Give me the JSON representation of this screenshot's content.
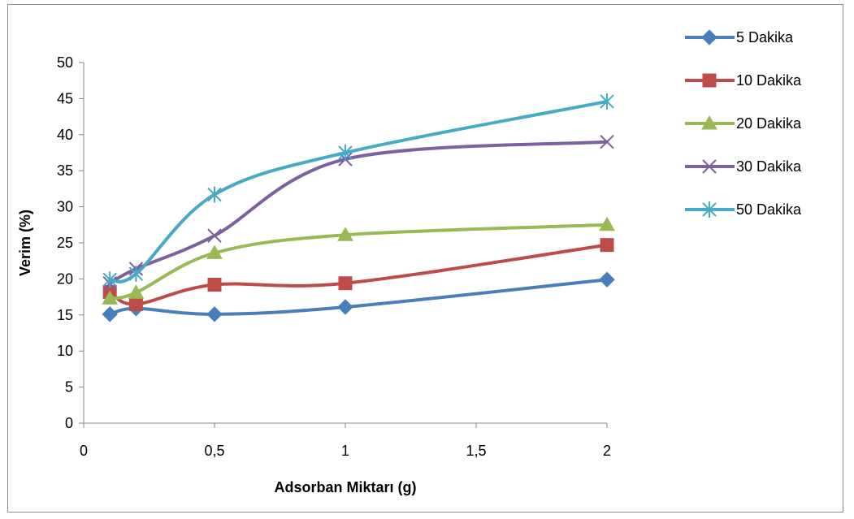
{
  "chart_data": {
    "type": "line",
    "title": "",
    "xlabel": "Adsorban Miktarı (g)",
    "ylabel": "Verim (%)",
    "xlim": [
      0,
      2
    ],
    "ylim": [
      0,
      50
    ],
    "x_ticks": [
      "0",
      "0,5",
      "1",
      "1,5",
      "2"
    ],
    "x_tick_values": [
      0,
      0.5,
      1,
      1.5,
      2
    ],
    "y_ticks": [
      "0",
      "5",
      "10",
      "15",
      "20",
      "25",
      "30",
      "35",
      "40",
      "45",
      "50"
    ],
    "y_tick_values": [
      0,
      5,
      10,
      15,
      20,
      25,
      30,
      35,
      40,
      45,
      50
    ],
    "grid": false,
    "legend_position": "right",
    "smoothed": true,
    "x": [
      0.1,
      0.2,
      0.5,
      1,
      2
    ],
    "series": [
      {
        "name": "5 Dakika",
        "values": [
          15.1,
          15.9,
          15.1,
          16.1,
          19.9
        ],
        "color": "#4A7EBB",
        "marker": "diamond"
      },
      {
        "name": "10 Dakika",
        "values": [
          18.2,
          16.5,
          19.2,
          19.4,
          24.7
        ],
        "color": "#BE4B48",
        "marker": "square"
      },
      {
        "name": "20 Dakika",
        "values": [
          17.3,
          18.1,
          23.6,
          26.1,
          27.5
        ],
        "color": "#98B954",
        "marker": "triangle"
      },
      {
        "name": "30 Dakika",
        "values": [
          19.4,
          21.4,
          26.0,
          36.6,
          39.0
        ],
        "color": "#7D60A0",
        "marker": "x"
      },
      {
        "name": "50 Dakika",
        "values": [
          19.9,
          20.7,
          31.7,
          37.5,
          44.6
        ],
        "color": "#46AAC5",
        "marker": "star"
      }
    ]
  }
}
